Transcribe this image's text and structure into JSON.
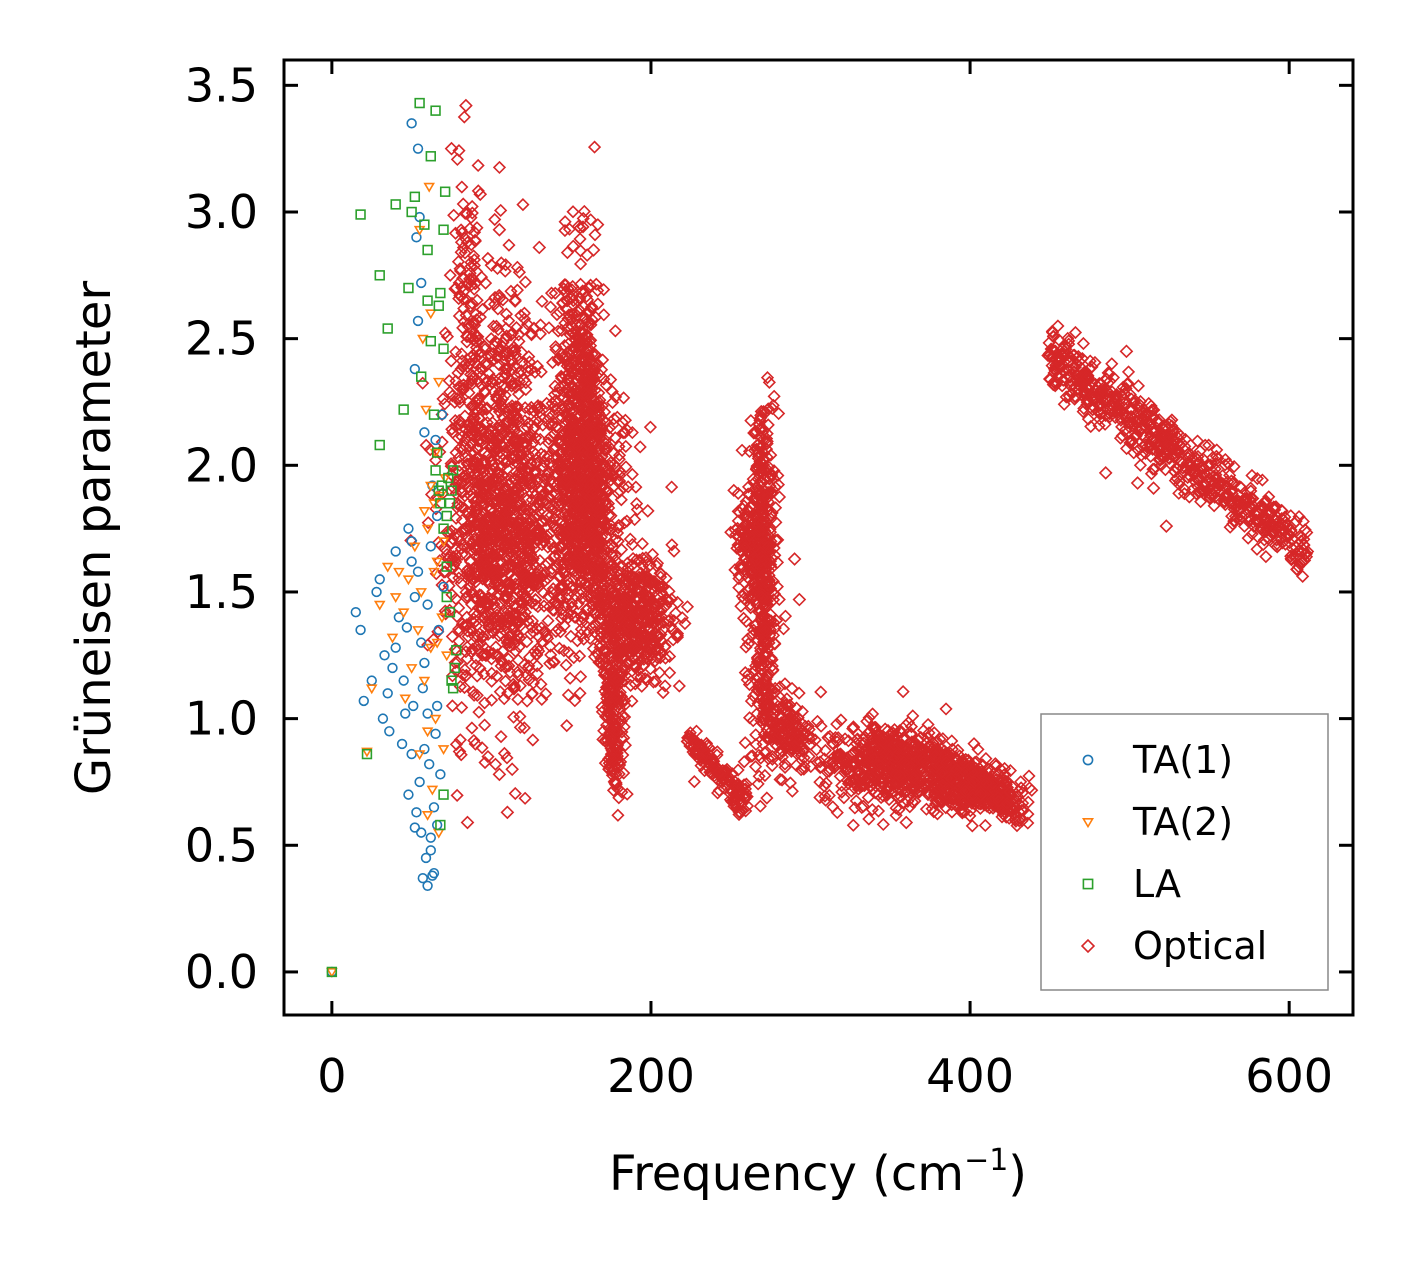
{
  "chart_data": {
    "type": "scatter",
    "title": "",
    "xlabel": "Frequency (cm",
    "xlabel_sup": "−1",
    "xlabel_end": ")",
    "ylabel": "Grüneisen parameter",
    "xlim": [
      -30,
      640
    ],
    "ylim": [
      -0.17,
      3.6
    ],
    "xticks": [
      0,
      200,
      400,
      600
    ],
    "xtick_labels": [
      "0",
      "200",
      "400",
      "600"
    ],
    "yticks": [
      0.0,
      0.5,
      1.0,
      1.5,
      2.0,
      2.5,
      3.0,
      3.5
    ],
    "ytick_labels": [
      "0.0",
      "0.5",
      "1.0",
      "1.5",
      "2.0",
      "2.5",
      "3.0",
      "3.5"
    ],
    "grid": false,
    "legend_position": "lower-right",
    "series": [
      {
        "name": "TA(1)",
        "marker": "circle",
        "color": "#1f77b4",
        "points": [
          [
            0,
            0
          ],
          [
            15,
            1.42
          ],
          [
            18,
            1.35
          ],
          [
            20,
            1.07
          ],
          [
            25,
            1.15
          ],
          [
            28,
            1.5
          ],
          [
            30,
            1.55
          ],
          [
            32,
            1.0
          ],
          [
            33,
            1.25
          ],
          [
            35,
            1.1
          ],
          [
            36,
            0.95
          ],
          [
            38,
            1.2
          ],
          [
            40,
            1.28
          ],
          [
            40,
            1.66
          ],
          [
            42,
            1.4
          ],
          [
            44,
            0.9
          ],
          [
            45,
            1.15
          ],
          [
            46,
            1.02
          ],
          [
            47,
            1.36
          ],
          [
            48,
            1.75
          ],
          [
            48,
            0.7
          ],
          [
            50,
            1.7
          ],
          [
            50,
            1.62
          ],
          [
            50,
            0.86
          ],
          [
            50,
            3.35
          ],
          [
            51,
            1.05
          ],
          [
            52,
            1.48
          ],
          [
            52,
            0.57
          ],
          [
            53,
            2.9
          ],
          [
            53,
            0.63
          ],
          [
            54,
            3.25
          ],
          [
            54,
            1.58
          ],
          [
            55,
            0.75
          ],
          [
            55,
            2.98
          ],
          [
            56,
            1.3
          ],
          [
            56,
            0.55
          ],
          [
            57,
            1.12
          ],
          [
            57,
            0.37
          ],
          [
            58,
            0.88
          ],
          [
            58,
            1.22
          ],
          [
            59,
            0.45
          ],
          [
            60,
            0.34
          ],
          [
            60,
            1.02
          ],
          [
            61,
            0.82
          ],
          [
            62,
            0.53
          ],
          [
            62,
            1.68
          ],
          [
            63,
            0.38
          ],
          [
            63,
            1.92
          ],
          [
            64,
            0.65
          ],
          [
            65,
            2.1
          ],
          [
            65,
            0.94
          ],
          [
            66,
            1.8
          ],
          [
            66,
            0.58
          ],
          [
            67,
            1.35
          ],
          [
            68,
            0.78
          ],
          [
            69,
            2.2
          ],
          [
            70,
            1.52
          ],
          [
            52,
            2.38
          ],
          [
            54,
            2.57
          ],
          [
            56,
            2.72
          ],
          [
            58,
            2.13
          ],
          [
            60,
            1.45
          ],
          [
            62,
            0.48
          ],
          [
            64,
            0.39
          ],
          [
            66,
            1.05
          ]
        ]
      },
      {
        "name": "TA(2)",
        "marker": "triangle-down",
        "color": "#ff7f0e",
        "points": [
          [
            0,
            0
          ],
          [
            22,
            0.87
          ],
          [
            25,
            1.12
          ],
          [
            30,
            1.45
          ],
          [
            35,
            1.6
          ],
          [
            38,
            1.32
          ],
          [
            40,
            1.48
          ],
          [
            42,
            1.58
          ],
          [
            45,
            1.42
          ],
          [
            46,
            1.08
          ],
          [
            48,
            1.55
          ],
          [
            50,
            1.2
          ],
          [
            52,
            1.68
          ],
          [
            54,
            1.35
          ],
          [
            55,
            0.86
          ],
          [
            56,
            1.5
          ],
          [
            57,
            2.5
          ],
          [
            58,
            1.15
          ],
          [
            59,
            2.22
          ],
          [
            60,
            1.75
          ],
          [
            60,
            0.95
          ],
          [
            61,
            3.1
          ],
          [
            62,
            2.6
          ],
          [
            62,
            1.28
          ],
          [
            63,
            0.72
          ],
          [
            64,
            1.85
          ],
          [
            65,
            2.05
          ],
          [
            65,
            1.0
          ],
          [
            66,
            1.62
          ],
          [
            67,
            0.55
          ],
          [
            67,
            2.33
          ],
          [
            68,
            1.88
          ],
          [
            69,
            1.4
          ],
          [
            70,
            0.88
          ],
          [
            70,
            1.7
          ],
          [
            71,
            1.95
          ],
          [
            72,
            1.25
          ],
          [
            55,
            2.93
          ],
          [
            58,
            1.82
          ],
          [
            60,
            0.62
          ],
          [
            62,
            1.92
          ],
          [
            64,
            1.58
          ],
          [
            66,
            1.3
          ]
        ]
      },
      {
        "name": "LA",
        "marker": "square",
        "color": "#2ca02c",
        "points": [
          [
            0,
            0
          ],
          [
            18,
            2.99
          ],
          [
            22,
            0.86
          ],
          [
            30,
            2.08
          ],
          [
            30,
            2.75
          ],
          [
            35,
            2.54
          ],
          [
            40,
            3.03
          ],
          [
            45,
            2.22
          ],
          [
            48,
            2.7
          ],
          [
            50,
            3.0
          ],
          [
            52,
            3.06
          ],
          [
            55,
            3.43
          ],
          [
            56,
            2.35
          ],
          [
            58,
            2.95
          ],
          [
            60,
            2.65
          ],
          [
            60,
            2.85
          ],
          [
            62,
            2.49
          ],
          [
            62,
            3.22
          ],
          [
            64,
            2.2
          ],
          [
            65,
            3.4
          ],
          [
            65,
            1.98
          ],
          [
            66,
            2.05
          ],
          [
            67,
            1.9
          ],
          [
            67,
            2.63
          ],
          [
            68,
            1.85
          ],
          [
            68,
            2.68
          ],
          [
            69,
            1.92
          ],
          [
            70,
            1.75
          ],
          [
            70,
            2.46
          ],
          [
            70,
            2.93
          ],
          [
            71,
            3.08
          ],
          [
            72,
            1.8
          ],
          [
            72,
            1.48
          ],
          [
            73,
            1.95
          ],
          [
            74,
            1.42
          ],
          [
            75,
            1.15
          ],
          [
            75,
            1.9
          ],
          [
            76,
            1.12
          ],
          [
            77,
            1.2
          ],
          [
            78,
            1.27
          ],
          [
            68,
            0.58
          ],
          [
            70,
            0.7
          ],
          [
            72,
            1.6
          ],
          [
            74,
            1.85
          ],
          [
            76,
            1.98
          ]
        ]
      },
      {
        "name": "Optical",
        "marker": "diamond",
        "color": "#d62728",
        "clusters": [
          {
            "cx": 95,
            "cy": 1.75,
            "sx": 14,
            "sy": 0.35,
            "n": 700
          },
          {
            "cx": 120,
            "cy": 1.7,
            "sx": 15,
            "sy": 0.3,
            "n": 600
          },
          {
            "cx": 155,
            "cy": 2.1,
            "sx": 8,
            "sy": 0.35,
            "n": 600
          },
          {
            "cx": 160,
            "cy": 1.85,
            "sx": 12,
            "sy": 0.25,
            "n": 500
          },
          {
            "cx": 190,
            "cy": 1.4,
            "sx": 12,
            "sy": 0.12,
            "n": 450
          },
          {
            "cx": 178,
            "cy": 1.05,
            "sx": 3,
            "sy": 0.2,
            "n": 150
          },
          {
            "cx": 270,
            "cy": 1.5,
            "sx": 5,
            "sy": 0.35,
            "n": 350
          },
          {
            "cx": 285,
            "cy": 0.95,
            "sx": 8,
            "sy": 0.08,
            "n": 150
          },
          {
            "cx": 350,
            "cy": 0.82,
            "sx": 22,
            "sy": 0.08,
            "n": 600
          },
          {
            "cx": 400,
            "cy": 0.73,
            "sx": 15,
            "sy": 0.05,
            "n": 250
          },
          {
            "cx": 262,
            "cy": 1.68,
            "sx": 5,
            "sy": 0.1,
            "n": 120
          },
          {
            "cx": 110,
            "cy": 2.35,
            "sx": 12,
            "sy": 0.25,
            "n": 150
          },
          {
            "cx": 85,
            "cy": 2.6,
            "sx": 5,
            "sy": 0.3,
            "n": 100
          }
        ],
        "bands": [
          {
            "x0": 450,
            "y0": 2.43,
            "x1": 610,
            "y1": 1.66,
            "spread": 0.06,
            "n": 700
          },
          {
            "x0": 225,
            "y0": 0.92,
            "x1": 260,
            "y1": 0.66,
            "spread": 0.03,
            "n": 150
          },
          {
            "x0": 268,
            "y0": 2.18,
            "x1": 272,
            "y1": 1.0,
            "spread": 0.02,
            "n": 120
          },
          {
            "x0": 160,
            "y0": 2.62,
            "x1": 175,
            "y1": 0.78,
            "spread": 0.06,
            "n": 200
          },
          {
            "x0": 380,
            "y0": 0.85,
            "x1": 432,
            "y1": 0.62,
            "spread": 0.03,
            "n": 200
          }
        ],
        "points": [
          [
            84,
            3.42
          ],
          [
            75,
            3.25
          ],
          [
            93,
            3.07
          ],
          [
            105,
            2.93
          ],
          [
            130,
            2.86
          ],
          [
            160,
            2.83
          ],
          [
            164,
            2.85
          ],
          [
            100,
            2.79
          ],
          [
            105,
            2.66
          ],
          [
            90,
            0.9
          ],
          [
            110,
            0.63
          ],
          [
            105,
            0.78
          ],
          [
            113,
            0.8
          ],
          [
            178,
            0.74
          ],
          [
            256,
            0.63
          ],
          [
            252,
            0.68
          ],
          [
            360,
            0.59
          ],
          [
            315,
            0.85
          ],
          [
            85,
            0.59
          ],
          [
            80,
            0.87
          ],
          [
            77,
            2.25
          ],
          [
            78,
            2.05
          ],
          [
            198,
            1.82
          ],
          [
            210,
            1.47
          ],
          [
            208,
            1.38
          ],
          [
            290,
            1.63
          ],
          [
            293,
            1.47
          ],
          [
            300,
            0.9
          ],
          [
            498,
            2.45
          ],
          [
            523,
            1.76
          ],
          [
            601,
            1.8
          ],
          [
            485,
            1.97
          ],
          [
            505,
            1.93
          ],
          [
            515,
            1.91
          ],
          [
            519,
            2.02
          ]
        ]
      }
    ]
  }
}
